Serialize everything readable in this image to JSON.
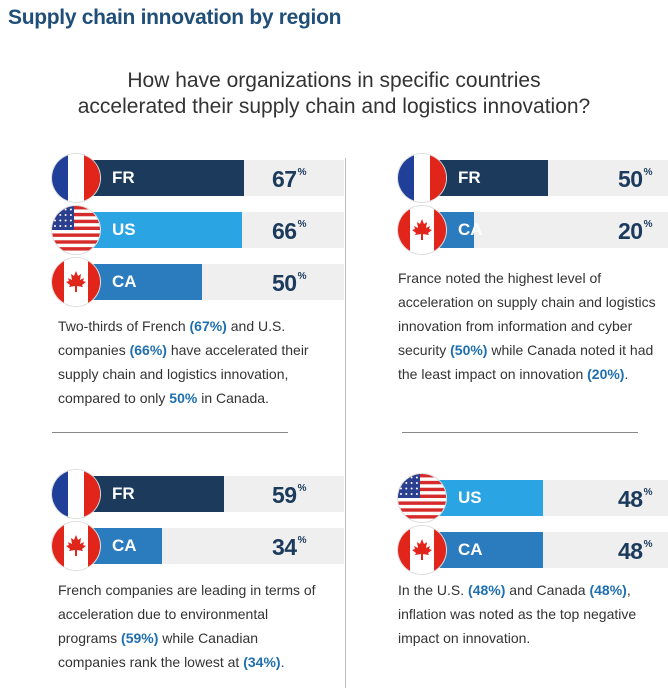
{
  "title": "Supply chain innovation by region",
  "question": [
    "How have organizations in specific countries",
    "accelerated their supply chain and logistics innovation?"
  ],
  "colors": {
    "fr": "#1b3a5c",
    "us": "#2aa4e3",
    "ca": "#2b7cbf",
    "track": "#efefef"
  },
  "chart_data": [
    {
      "type": "bar",
      "categories": [
        "FR",
        "US",
        "CA"
      ],
      "values": [
        67,
        66,
        50
      ],
      "unit": "%"
    },
    {
      "type": "bar",
      "categories": [
        "FR",
        "CA"
      ],
      "values": [
        50,
        20
      ],
      "unit": "%"
    },
    {
      "type": "bar",
      "categories": [
        "FR",
        "CA"
      ],
      "values": [
        59,
        34
      ],
      "unit": "%"
    },
    {
      "type": "bar",
      "categories": [
        "US",
        "CA"
      ],
      "values": [
        48,
        48
      ],
      "unit": "%"
    }
  ],
  "captions": [
    [
      {
        "t": "Two-thirds of French ",
        "h": false
      },
      {
        "t": "(67%)",
        "h": true
      },
      {
        "t": " and U.S. companies ",
        "h": false
      },
      {
        "t": "(66%)",
        "h": true
      },
      {
        "t": " have accelerated their supply chain and logistics innovation, compared to only ",
        "h": false
      },
      {
        "t": "50%",
        "h": true
      },
      {
        "t": " in Canada.",
        "h": false
      }
    ],
    [
      {
        "t": "France noted the highest level of acceleration on supply chain and logistics innovation from information and cyber security ",
        "h": false
      },
      {
        "t": "(50%)",
        "h": true
      },
      {
        "t": " while Canada noted it had the least impact on innovation ",
        "h": false
      },
      {
        "t": "(20%)",
        "h": true
      },
      {
        "t": ".",
        "h": false
      }
    ],
    [
      {
        "t": "French companies are leading in terms of acceleration due to environmental programs ",
        "h": false
      },
      {
        "t": "(59%)",
        "h": true
      },
      {
        "t": " while Canadian companies rank the lowest at ",
        "h": false
      },
      {
        "t": "(34%)",
        "h": true
      },
      {
        "t": ".",
        "h": false
      }
    ],
    [
      {
        "t": "In the U.S. ",
        "h": false
      },
      {
        "t": "(48%)",
        "h": true
      },
      {
        "t": " and Canada ",
        "h": false
      },
      {
        "t": "(48%)",
        "h": true
      },
      {
        "t": ", inflation was noted as the top negative impact on innovation.",
        "h": false
      }
    ]
  ]
}
